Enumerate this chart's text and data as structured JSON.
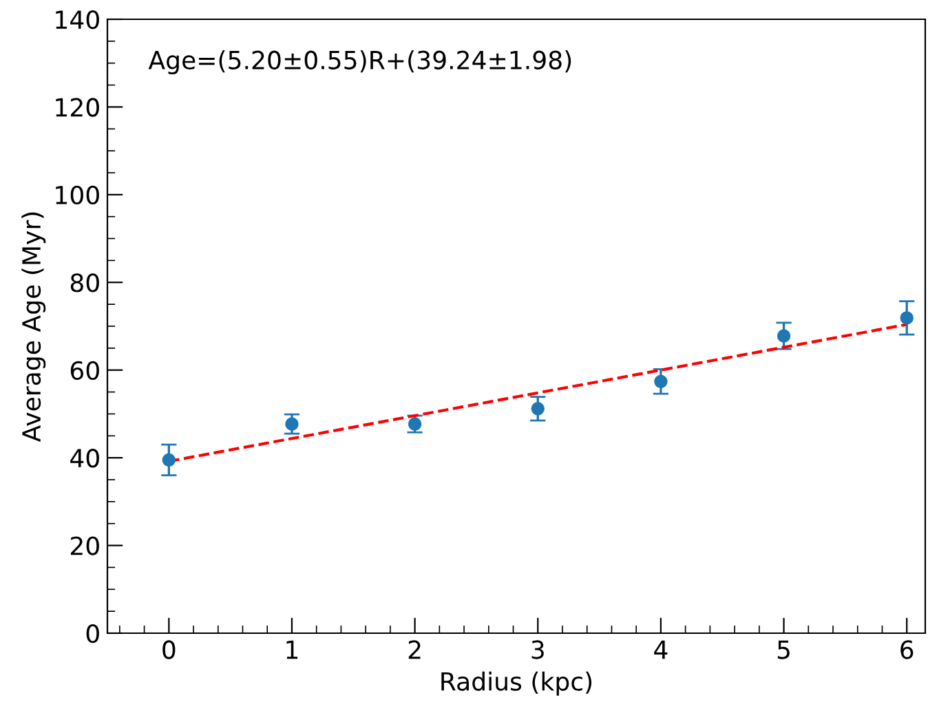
{
  "chart_data": {
    "type": "scatter",
    "xlabel": "Radius (kpc)",
    "ylabel": "Average Age (Myr)",
    "annotations": [
      "Age=(5.20±0.55)R+(39.24±1.98)"
    ],
    "xlim": [
      -0.5,
      6.15
    ],
    "ylim": [
      0,
      140
    ],
    "xticks": [
      0,
      1,
      2,
      3,
      4,
      5,
      6
    ],
    "yticks": [
      0,
      20,
      40,
      60,
      80,
      100,
      120,
      140
    ],
    "grid": false,
    "series": [
      {
        "marker": "circle",
        "color": "#1f77b4",
        "x": [
          0,
          1,
          2,
          3,
          4,
          5,
          6
        ],
        "values": [
          39.5,
          47.7,
          47.7,
          51.2,
          57.4,
          67.8,
          71.9
        ],
        "errors": [
          3.5,
          2.2,
          1.9,
          2.7,
          2.8,
          3,
          3.8
        ]
      },
      {
        "type": "line",
        "color": "#ff0000",
        "line_style": "dashed",
        "x": [
          0,
          6
        ],
        "values": [
          39.2,
          70.4
        ]
      }
    ]
  }
}
